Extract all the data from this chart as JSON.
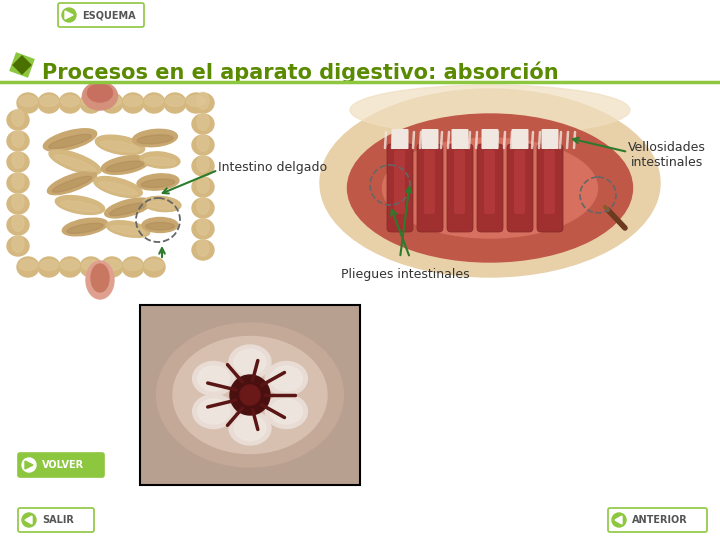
{
  "background_color": "#ffffff",
  "title": "Procesos en el aparato digestivo: absorción",
  "title_color": "#5a8a00",
  "title_fontsize": 15,
  "title_fontweight": "bold",
  "esquema_label": "ESQUEMA",
  "volver_label": "VOLVER",
  "salir_label": "SALIR",
  "anterior_label": "ANTERIOR",
  "button_color": "#8dc63f",
  "label_intestino": "Intestino delgado",
  "label_vellosidades": "Vellosidades\nintestinales",
  "label_pliegues": "Pliegues intestinales",
  "label_color": "#333333",
  "arrow_color": "#2d7a2d",
  "line_color": "#8dc63f"
}
